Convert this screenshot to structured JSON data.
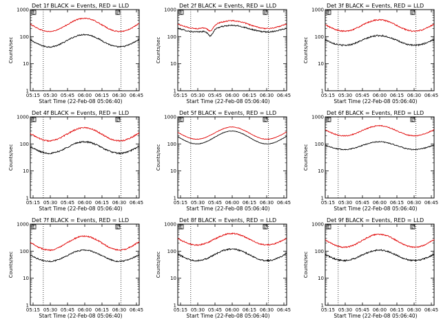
{
  "figure": {
    "x_axis_label": "Start Time (22-Feb-08 05:06:40)",
    "y_axis_label": "Counts/sec",
    "legend_box_label": "E",
    "series_colors": {
      "events": "#000000",
      "lld": "#e00000"
    },
    "dotted_line_color": "#000000"
  },
  "chart_data": [
    {
      "type": "line",
      "title": "Det 1f BLACK = Events, RED = LLD",
      "x_ticks": [
        "05:15",
        "05:30",
        "05:45",
        "06:00",
        "06:15",
        "06:30",
        "06:45"
      ],
      "y_ticks": [
        "1",
        "10",
        "100",
        "1000"
      ],
      "yscale": "log",
      "ylim": [
        1,
        1000
      ],
      "xlim_minutes": [
        5,
        47
      ],
      "vlines_minutes": [
        10,
        40
      ],
      "series": [
        {
          "name": "Events",
          "base": 42,
          "peak": 120,
          "noise": 0.05
        },
        {
          "name": "LLD",
          "base": 155,
          "peak": 480,
          "noise": 0.04
        }
      ]
    },
    {
      "type": "line",
      "title": "Det 2f BLACK = Events, RED = LLD",
      "x_ticks": [
        "05:15",
        "05:30",
        "05:45",
        "06:00",
        "06:15",
        "06:30",
        "06:45"
      ],
      "y_ticks": [
        "1",
        "10",
        "100",
        "1000"
      ],
      "yscale": "log",
      "ylim": [
        1,
        1000
      ],
      "xlim_minutes": [
        5,
        47
      ],
      "vlines_minutes": [
        10,
        40
      ],
      "series": [
        {
          "name": "Events",
          "base": 150,
          "peak": 260,
          "noise": 0.05,
          "dip": 0.6
        },
        {
          "name": "LLD",
          "base": 200,
          "peak": 390,
          "noise": 0.04,
          "dip": 0.65
        }
      ]
    },
    {
      "type": "line",
      "title": "Det 3f BLACK = Events, RED = LLD",
      "x_ticks": [
        "05:15",
        "05:30",
        "05:45",
        "06:00",
        "06:15",
        "06:30",
        "06:45"
      ],
      "y_ticks": [
        "1",
        "10",
        "100",
        "1000"
      ],
      "yscale": "log",
      "ylim": [
        1,
        1000
      ],
      "xlim_minutes": [
        5,
        47
      ],
      "vlines_minutes": [
        10,
        40
      ],
      "series": [
        {
          "name": "Events",
          "base": 48,
          "peak": 110,
          "noise": 0.06
        },
        {
          "name": "LLD",
          "base": 160,
          "peak": 420,
          "noise": 0.05
        }
      ]
    },
    {
      "type": "line",
      "title": "Det 4f BLACK = Events, RED = LLD",
      "x_ticks": [
        "05:15",
        "05:30",
        "05:45",
        "06:00",
        "06:15",
        "06:30",
        "06:45"
      ],
      "y_ticks": [
        "1",
        "10",
        "100",
        "1000"
      ],
      "yscale": "log",
      "ylim": [
        1,
        1000
      ],
      "xlim_minutes": [
        5,
        47
      ],
      "vlines_minutes": [
        10,
        40
      ],
      "series": [
        {
          "name": "Events",
          "base": 45,
          "peak": 120,
          "noise": 0.06
        },
        {
          "name": "LLD",
          "base": 130,
          "peak": 400,
          "noise": 0.05
        }
      ]
    },
    {
      "type": "line",
      "title": "Det 5f BLACK = Events, RED = LLD",
      "x_ticks": [
        "05:15",
        "05:30",
        "05:45",
        "06:00",
        "06:15",
        "06:30",
        "06:45"
      ],
      "y_ticks": [
        "1",
        "10",
        "100",
        "1000"
      ],
      "yscale": "log",
      "ylim": [
        1,
        1000
      ],
      "xlim_minutes": [
        5,
        47
      ],
      "vlines_minutes": [
        10,
        40
      ],
      "series": [
        {
          "name": "Events",
          "base": 100,
          "peak": 300,
          "noise": 0.02
        },
        {
          "name": "LLD",
          "base": 150,
          "peak": 420,
          "noise": 0.02
        }
      ]
    },
    {
      "type": "line",
      "title": "Det 6f BLACK = Events, RED = LLD",
      "x_ticks": [
        "05:15",
        "05:30",
        "05:45",
        "06:00",
        "06:15",
        "06:30",
        "06:45"
      ],
      "y_ticks": [
        "1",
        "10",
        "100",
        "1000"
      ],
      "yscale": "log",
      "ylim": [
        1,
        1000
      ],
      "xlim_minutes": [
        5,
        47
      ],
      "vlines_minutes": [
        10,
        40
      ],
      "series": [
        {
          "name": "Events",
          "base": 62,
          "peak": 120,
          "noise": 0.04
        },
        {
          "name": "LLD",
          "base": 200,
          "peak": 470,
          "noise": 0.04
        }
      ]
    },
    {
      "type": "line",
      "title": "Det 7f BLACK = Events, RED = LLD",
      "x_ticks": [
        "05:15",
        "05:30",
        "05:45",
        "06:00",
        "06:15",
        "06:30",
        "06:45"
      ],
      "y_ticks": [
        "1",
        "10",
        "100",
        "1000"
      ],
      "yscale": "log",
      "ylim": [
        1,
        1000
      ],
      "xlim_minutes": [
        5,
        47
      ],
      "vlines_minutes": [
        10,
        40
      ],
      "series": [
        {
          "name": "Events",
          "base": 42,
          "peak": 110,
          "noise": 0.05
        },
        {
          "name": "LLD",
          "base": 110,
          "peak": 360,
          "noise": 0.05
        }
      ]
    },
    {
      "type": "line",
      "title": "Det 8f BLACK = Events, RED = LLD",
      "x_ticks": [
        "05:15",
        "05:30",
        "05:45",
        "06:00",
        "06:15",
        "06:30",
        "06:45"
      ],
      "y_ticks": [
        "1",
        "10",
        "100",
        "1000"
      ],
      "yscale": "log",
      "ylim": [
        1,
        1000
      ],
      "xlim_minutes": [
        5,
        47
      ],
      "vlines_minutes": [
        10,
        40
      ],
      "series": [
        {
          "name": "Events",
          "base": 45,
          "peak": 120,
          "noise": 0.06
        },
        {
          "name": "LLD",
          "base": 170,
          "peak": 450,
          "noise": 0.05
        }
      ]
    },
    {
      "type": "line",
      "title": "Det 9f BLACK = Events, RED = LLD",
      "x_ticks": [
        "05:15",
        "05:30",
        "05:45",
        "06:00",
        "06:15",
        "06:30",
        "06:45"
      ],
      "y_ticks": [
        "1",
        "10",
        "100",
        "1000"
      ],
      "yscale": "log",
      "ylim": [
        1,
        1000
      ],
      "xlim_minutes": [
        5,
        47
      ],
      "vlines_minutes": [
        10,
        40
      ],
      "series": [
        {
          "name": "Events",
          "base": 45,
          "peak": 110,
          "noise": 0.06
        },
        {
          "name": "LLD",
          "base": 140,
          "peak": 420,
          "noise": 0.05
        }
      ]
    }
  ]
}
